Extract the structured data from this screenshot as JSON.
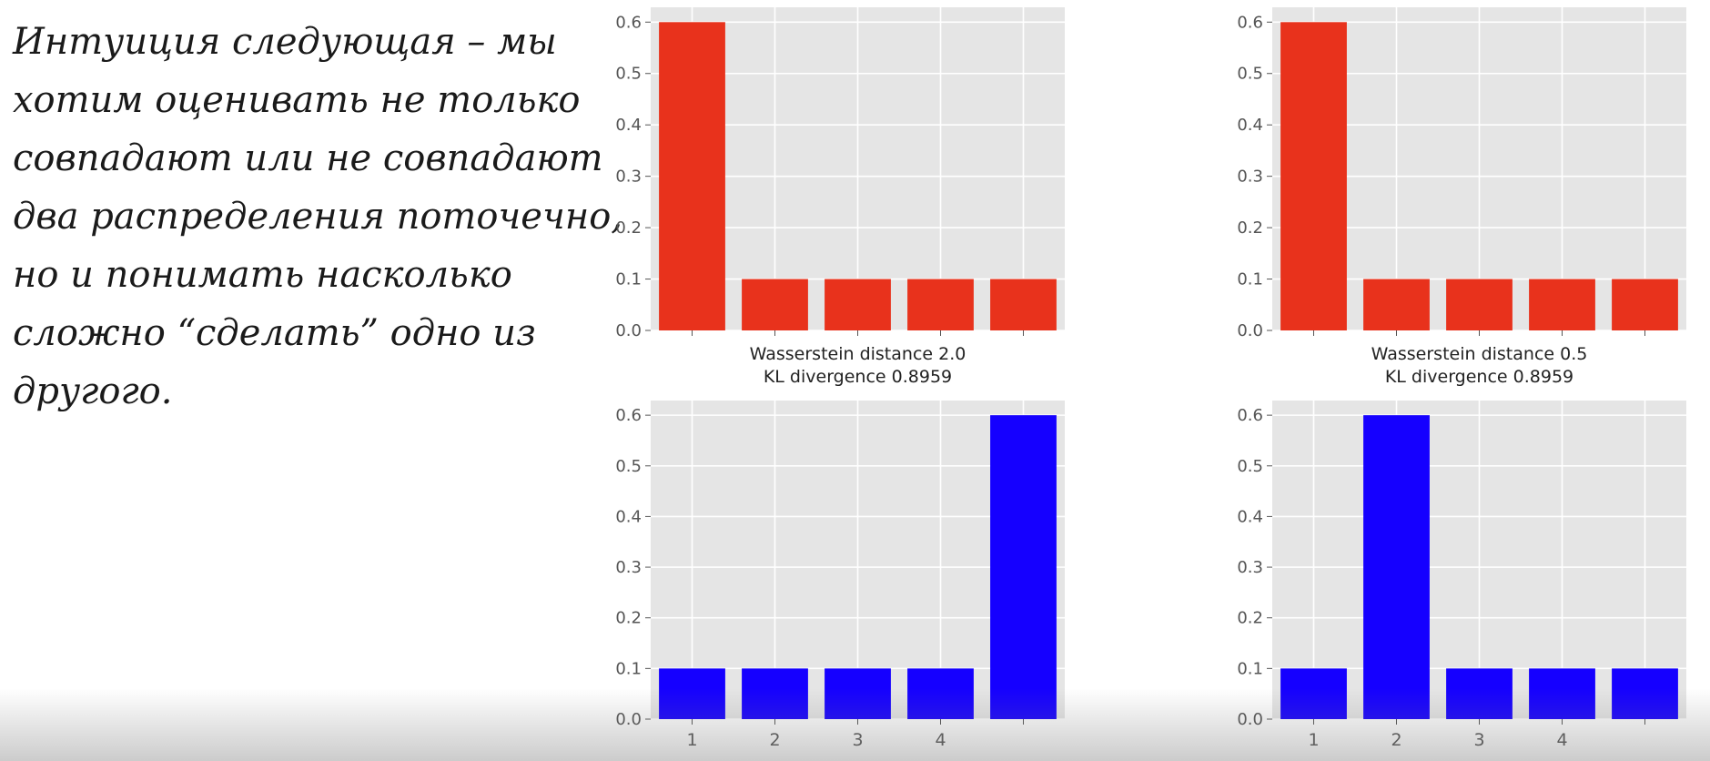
{
  "slide": {
    "lines": [
      "Интуиция следующая – мы",
      "хотим оценивать не только",
      "совпадают или не совпадают",
      "два распределения поточечно,",
      "но и понимать насколько",
      "сложно “сделать” одно из",
      "другого."
    ]
  },
  "chart_data": [
    {
      "type": "bar",
      "categories": [
        "",
        "",
        "",
        "",
        ""
      ],
      "values": [
        0.6,
        0.1,
        0.1,
        0.1,
        0.1
      ],
      "color": "#e8321c",
      "ylim": [
        0,
        0.62
      ],
      "yticks": [
        "0.0",
        "0.1",
        "0.2",
        "0.3",
        "0.4",
        "0.5",
        "0.6"
      ],
      "grid": true,
      "xlabel_lines": [
        "Wasserstein distance 2.0",
        "KL divergence 0.8959"
      ]
    },
    {
      "type": "bar",
      "categories": [
        "",
        "",
        "",
        "",
        ""
      ],
      "values": [
        0.6,
        0.1,
        0.1,
        0.1,
        0.1
      ],
      "color": "#e8321c",
      "ylim": [
        0,
        0.62
      ],
      "yticks": [
        "0.0",
        "0.1",
        "0.2",
        "0.3",
        "0.4",
        "0.5",
        "0.6"
      ],
      "grid": true,
      "xlabel_lines": [
        "Wasserstein distance 0.5",
        "KL divergence 0.8959"
      ]
    },
    {
      "type": "bar",
      "categories": [
        "1",
        "2",
        "3",
        "4",
        ""
      ],
      "values": [
        0.1,
        0.1,
        0.1,
        0.1,
        0.6
      ],
      "color": "#1500ff",
      "ylim": [
        0,
        0.62
      ],
      "yticks": [
        "0.0",
        "0.1",
        "0.2",
        "0.3",
        "0.4",
        "0.5",
        "0.6"
      ],
      "grid": true,
      "xlabel_lines": []
    },
    {
      "type": "bar",
      "categories": [
        "1",
        "2",
        "3",
        "4",
        ""
      ],
      "values": [
        0.1,
        0.6,
        0.1,
        0.1,
        0.1
      ],
      "color": "#1500ff",
      "ylim": [
        0,
        0.62
      ],
      "yticks": [
        "0.0",
        "0.1",
        "0.2",
        "0.3",
        "0.4",
        "0.5",
        "0.6"
      ],
      "grid": true,
      "xlabel_lines": []
    }
  ]
}
